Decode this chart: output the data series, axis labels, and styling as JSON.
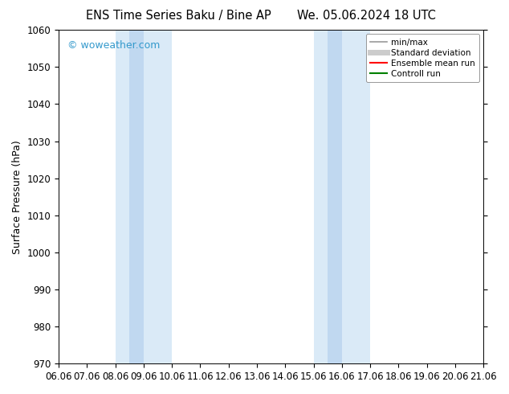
{
  "title_left": "ENS Time Series Baku / Bine AP",
  "title_right": "We. 05.06.2024 18 UTC",
  "ylabel": "Surface Pressure (hPa)",
  "ylim": [
    970,
    1060
  ],
  "yticks": [
    970,
    980,
    990,
    1000,
    1010,
    1020,
    1030,
    1040,
    1050,
    1060
  ],
  "xtick_labels": [
    "06.06",
    "07.06",
    "08.06",
    "09.06",
    "10.06",
    "11.06",
    "12.06",
    "13.06",
    "14.06",
    "15.06",
    "16.06",
    "17.06",
    "18.06",
    "19.06",
    "20.06",
    "21.06"
  ],
  "shaded_regions": [
    {
      "xstart": 2.0,
      "xend": 4.0,
      "color": "#daeaf7"
    },
    {
      "xstart": 9.0,
      "xend": 11.0,
      "color": "#daeaf7"
    }
  ],
  "shaded_narrow": [
    {
      "xstart": 2.5,
      "xend": 3.0,
      "color": "#c0d8f0"
    },
    {
      "xstart": 9.5,
      "xend": 10.0,
      "color": "#c0d8f0"
    }
  ],
  "watermark": "© woweather.com",
  "watermark_color": "#3399cc",
  "background_color": "#ffffff",
  "plot_bg_color": "#ffffff",
  "legend_items": [
    {
      "label": "min/max",
      "color": "#999999",
      "lw": 1.2,
      "style": "solid"
    },
    {
      "label": "Standard deviation",
      "color": "#cccccc",
      "lw": 5,
      "style": "solid"
    },
    {
      "label": "Ensemble mean run",
      "color": "#ff0000",
      "lw": 1.5,
      "style": "solid"
    },
    {
      "label": "Controll run",
      "color": "#008000",
      "lw": 1.5,
      "style": "solid"
    }
  ],
  "title_fontsize": 10.5,
  "axis_label_fontsize": 9,
  "tick_fontsize": 8.5,
  "watermark_fontsize": 9
}
